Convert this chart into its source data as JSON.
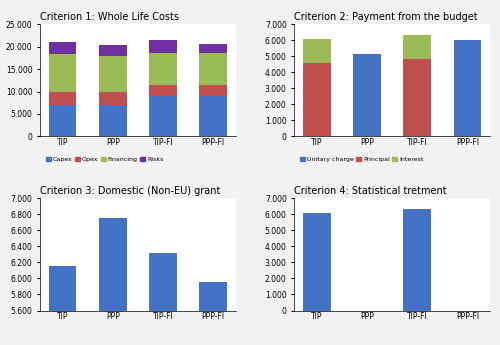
{
  "c1": {
    "title": "Criterion 1: Whole Life Costs",
    "categories": [
      "TIP",
      "PPP",
      "TIP-FI",
      "PPP-FI"
    ],
    "capex": [
      7000,
      7000,
      9000,
      9000
    ],
    "opex": [
      2800,
      2800,
      2500,
      2500
    ],
    "financing": [
      8500,
      8000,
      7000,
      7000
    ],
    "risks": [
      2700,
      2500,
      3000,
      2000
    ],
    "ylim": [
      0,
      25000
    ],
    "yticks": [
      0,
      5000,
      10000,
      15000,
      20000,
      25000
    ],
    "legend": [
      "Capex",
      "Opex",
      "Financing",
      "Risks"
    ],
    "colors": [
      "#4472C4",
      "#C0504D",
      "#9BBB59",
      "#7030A0"
    ]
  },
  "c2": {
    "title": "Criterion 2: Payment from the budget",
    "categories": [
      "TIP",
      "PPP",
      "TIP-FI",
      "PPP-FI"
    ],
    "unitary": [
      0,
      5150,
      0,
      6000
    ],
    "principal": [
      4600,
      0,
      4800,
      0
    ],
    "interest": [
      1500,
      0,
      1500,
      0
    ],
    "ylim": [
      0,
      7000
    ],
    "yticks": [
      0,
      1000,
      2000,
      3000,
      4000,
      5000,
      6000,
      7000
    ],
    "legend": [
      "Unitary charge",
      "Principal",
      "Interest"
    ],
    "colors": [
      "#4472C4",
      "#C0504D",
      "#9BBB59"
    ]
  },
  "c3": {
    "title": "Criterion 3: Domestic (Non-EU) grant",
    "categories": [
      "TIP",
      "PPP",
      "TIP-FI",
      "PPP-FI"
    ],
    "values": [
      6150,
      6750,
      6320,
      5950
    ],
    "ylim": [
      5600,
      7000
    ],
    "yticks": [
      5600,
      5800,
      6000,
      6200,
      6400,
      6600,
      6800,
      7000
    ],
    "color": "#4472C4"
  },
  "c4": {
    "title": "Criterion 4: Statistical tretment",
    "categories": [
      "TIP",
      "PPP",
      "TIP-FI",
      "PPP-FI"
    ],
    "values": [
      6100,
      0,
      6300,
      0
    ],
    "ylim": [
      0,
      7000
    ],
    "yticks": [
      0,
      1000,
      2000,
      3000,
      4000,
      5000,
      6000,
      7000
    ],
    "color": "#4472C4"
  },
  "bg_color": "#F2F2F2",
  "subplot_bg": "#FFFFFF"
}
